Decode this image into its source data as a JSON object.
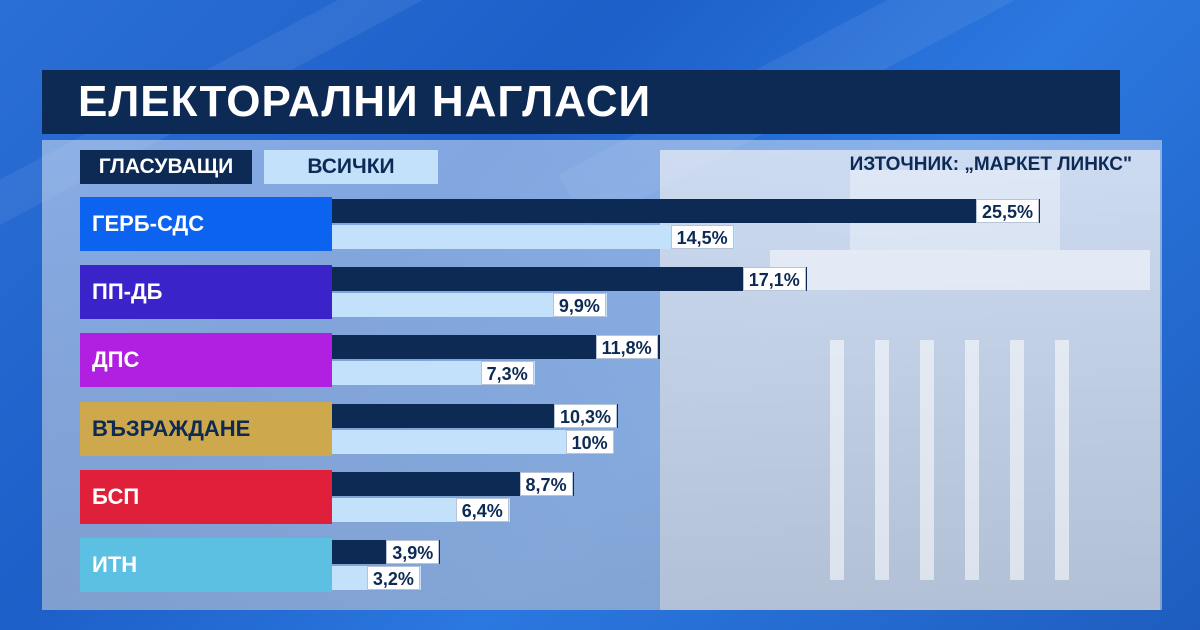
{
  "title": "ЕЛЕКТОРАЛНИ НАГЛАСИ",
  "source": "ИЗТОЧНИК: „МАРКЕТ ЛИНКС\"",
  "chart_data": {
    "type": "bar",
    "orientation": "horizontal",
    "title": "ЕЛЕКТОРАЛНИ НАГЛАСИ",
    "categories": [
      "ГЕРБ-СДС",
      "ПП-ДБ",
      "ДПС",
      "ВЪЗРАЖДАНЕ",
      "БСП",
      "ИТН"
    ],
    "category_colors": [
      "#0b63f0",
      "#3a23c9",
      "#b11fe0",
      "#cda84c",
      "#e0203a",
      "#5cc0e3"
    ],
    "category_text_colors": [
      "#ffffff",
      "#ffffff",
      "#ffffff",
      "#0d2a55",
      "#ffffff",
      "#ffffff"
    ],
    "series": [
      {
        "name": "ГЛАСУВАЩИ",
        "color": "#0d2a55",
        "values": [
          25.5,
          17.1,
          11.8,
          10.3,
          8.7,
          3.9
        ],
        "labels": [
          "25,5%",
          "17,1%",
          "11,8%",
          "10,3%",
          "8,7%",
          "3,9%"
        ]
      },
      {
        "name": "ВСИЧКИ",
        "color": "#c4e1fb",
        "values": [
          14.5,
          9.9,
          7.3,
          10,
          6.4,
          3.2
        ],
        "labels": [
          "14,5%",
          "9,9%",
          "7,3%",
          "10%",
          "6,4%",
          "3,2%"
        ]
      }
    ],
    "xlim": [
      0,
      27
    ],
    "legend": "top-left",
    "grid": false
  }
}
